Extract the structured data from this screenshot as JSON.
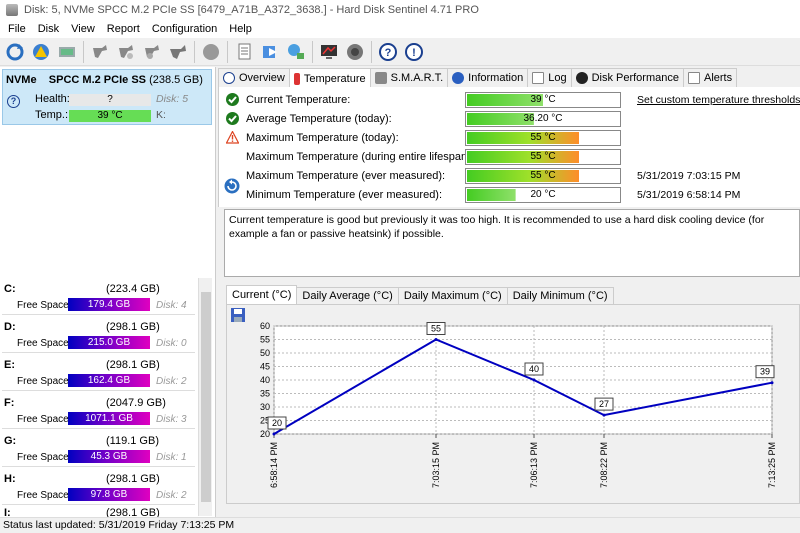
{
  "window": {
    "title": "Disk: 5, NVMe    SPCC M.2 PCIe SS [6479_A71B_A372_3638.]  -  Hard Disk Sentinel 4.71 PRO"
  },
  "menu": [
    "File",
    "Disk",
    "View",
    "Report",
    "Configuration",
    "Help"
  ],
  "toolbar_icons": [
    "refresh-icon",
    "alert-icon",
    "disk-icon",
    "tools-icon",
    "test-icon",
    "surface-icon",
    "clean-icon",
    "stop-icon",
    "report-icon",
    "send-report-icon",
    "network-icon",
    "monitor-icon",
    "speaker-icon",
    "help-icon",
    "info-icon"
  ],
  "disk": {
    "type": "NVMe",
    "name": "SPCC M.2 PCIe SS",
    "size": "(238.5 GB)",
    "health_label": "Health:",
    "health_value": "?",
    "disk_label": "Disk: 5",
    "temp_label": "Temp.:",
    "temp_value": "39 °C",
    "k_label": "K:"
  },
  "partitions": [
    {
      "letter": "C:",
      "size": "(223.4 GB)",
      "free_label": "Free Space",
      "free": "179.4 GB",
      "disk": "Disk: 4"
    },
    {
      "letter": "D:",
      "size": "(298.1 GB)",
      "free_label": "Free Space",
      "free": "215.0 GB",
      "disk": "Disk: 0"
    },
    {
      "letter": "E:",
      "size": "(298.1 GB)",
      "free_label": "Free Space",
      "free": "162.4 GB",
      "disk": "Disk: 2"
    },
    {
      "letter": "F:",
      "size": "(2047.9 GB)",
      "free_label": "Free Space",
      "free": "1071.1 GB",
      "disk": "Disk: 3"
    },
    {
      "letter": "G:",
      "size": "(119.1 GB)",
      "free_label": "Free Space",
      "free": "45.3 GB",
      "disk": "Disk: 1"
    },
    {
      "letter": "H:",
      "size": "(298.1 GB)",
      "free_label": "Free Space",
      "free": "97.8 GB",
      "disk": "Disk: 2"
    },
    {
      "letter": "I:",
      "size": "(298.1 GB)",
      "free_label": "",
      "free": "",
      "disk": ""
    }
  ],
  "tabs": [
    "Overview",
    "Temperature",
    "S.M.A.R.T.",
    "Information",
    "Log",
    "Disk Performance",
    "Alerts"
  ],
  "temperature_rows": [
    {
      "label": "Current Temperature:",
      "value": "39 °C",
      "fill": 0.5,
      "extra": "Set custom temperature thresholds"
    },
    {
      "label": "Average Temperature (today):",
      "value": "36.20 °C",
      "fill": 0.44,
      "extra": ""
    },
    {
      "label": "Maximum Temperature (today):",
      "value": "55 °C",
      "fill": 0.74,
      "extra": ""
    },
    {
      "label": "Maximum Temperature (during entire lifespan):",
      "value": "55 °C",
      "fill": 0.74,
      "extra": ""
    },
    {
      "label": "Maximum Temperature (ever measured):",
      "value": "55 °C",
      "fill": 0.74,
      "extra": "5/31/2019 7:03:15 PM"
    },
    {
      "label": "Minimum Temperature (ever measured):",
      "value": "20 °C",
      "fill": 0.32,
      "extra": "5/31/2019 6:58:14 PM"
    }
  ],
  "message": "Current temperature is good but previously it was too high. It is recommended to use a hard disk cooling device (for example a fan or passive heatsink) if possible.",
  "graph_tabs": [
    "Current (°C)",
    "Daily Average (°C)",
    "Daily Maximum (°C)",
    "Daily Minimum (°C)"
  ],
  "chart_data": {
    "type": "line",
    "x": [
      "6:58:14 PM",
      "7:03:15 PM",
      "7:06:13 PM",
      "7:08:22 PM",
      "7:13:25 PM"
    ],
    "series": [
      {
        "values": [
          20,
          55,
          40,
          27,
          39
        ]
      }
    ],
    "point_labels": [
      "20",
      "55",
      "40",
      "27",
      "39"
    ],
    "ylim": [
      20,
      60
    ],
    "yticks": [
      "60",
      "55",
      "50",
      "45",
      "40",
      "35",
      "30",
      "25",
      "20"
    ],
    "grid": true,
    "line_color": "#0000c0"
  },
  "status": "Status last updated: 5/31/2019 Friday 7:13:25 PM",
  "colors": {
    "selected_card": "#cde8f8",
    "temp_gauge_green": "#33cc33",
    "free_bar_start": "#0000c0",
    "free_bar_end": "#e000c0"
  }
}
